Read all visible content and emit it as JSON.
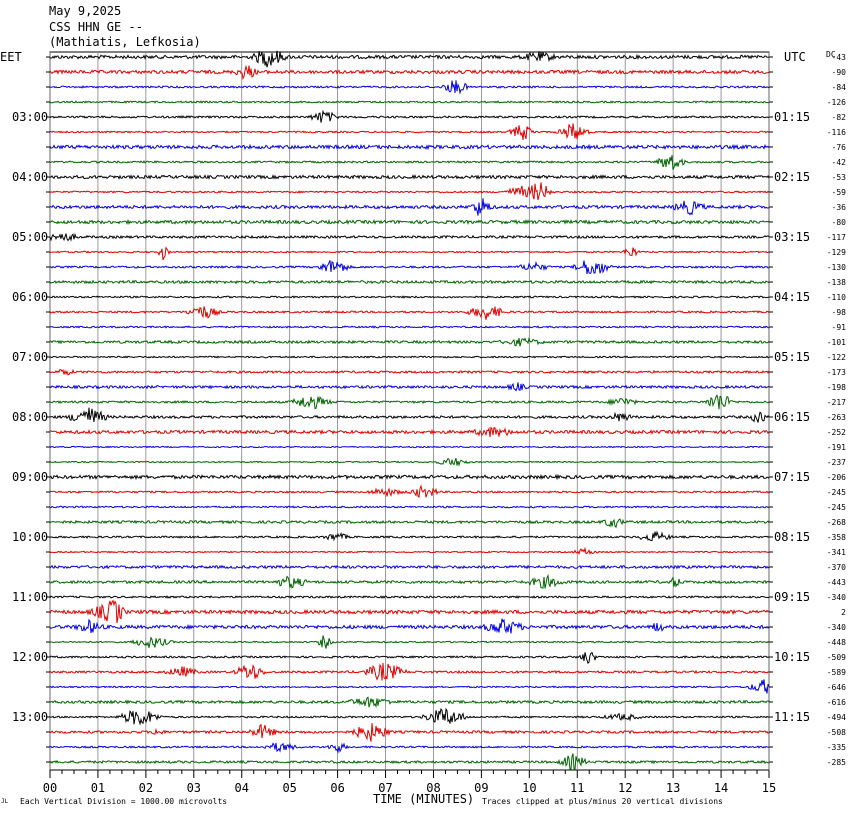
{
  "header": {
    "date": "May 9,2025",
    "station": "CSS HHN GE --",
    "location": "(Mathiatis, Lefkosia)"
  },
  "left_timezone": "EET",
  "right_timezone": "UTC",
  "dc_header": "DC",
  "footer": {
    "xlabel": "TIME (MINUTES)",
    "scale_note": "Each Vertical Division = 1000.00 microvolts",
    "clip_note": "Traces clipped at plus/minus 20 vertical divisions",
    "corner_mark": "JL"
  },
  "colors": {
    "black": "#000000",
    "red": "#e00000",
    "blue": "#0000e0",
    "green": "#006400",
    "grid": "#808080"
  },
  "chart_data": {
    "type": "line",
    "x_range_minutes": [
      0,
      15
    ],
    "x_ticks": [
      "00",
      "01",
      "02",
      "03",
      "04",
      "05",
      "06",
      "07",
      "08",
      "09",
      "10",
      "11",
      "12",
      "13",
      "14",
      "15"
    ],
    "traces_per_hour": 4,
    "trace_color_cycle": [
      "black",
      "red",
      "blue",
      "green"
    ],
    "left_hour_labels": [
      "03:00",
      "04:00",
      "05:00",
      "06:00",
      "07:00",
      "08:00",
      "09:00",
      "10:00",
      "11:00",
      "12:00",
      "13:00"
    ],
    "right_hour_labels": [
      "01:15",
      "02:15",
      "03:15",
      "04:15",
      "05:15",
      "06:15",
      "07:15",
      "08:15",
      "09:15",
      "10:15",
      "11:15"
    ],
    "dc_offsets": [
      "-43",
      "-90",
      "-84",
      "-126",
      "-82",
      "-116",
      "-76",
      "-42",
      "-53",
      "-59",
      "-36",
      "-80",
      "-117",
      "-129",
      "-130",
      "-138",
      "-110",
      "-98",
      "-91",
      "-101",
      "-122",
      "-173",
      "-198",
      "-217",
      "-263",
      "-252",
      "-191",
      "-237",
      "-206",
      "-245",
      "-245",
      "-268",
      "-358",
      "-341",
      "-370",
      "-443",
      "-340",
      "2",
      "-340",
      "-448",
      "-509",
      "-589",
      "-646",
      "-616",
      "-494",
      "-508",
      "-335",
      "-285"
    ],
    "grid": true
  }
}
